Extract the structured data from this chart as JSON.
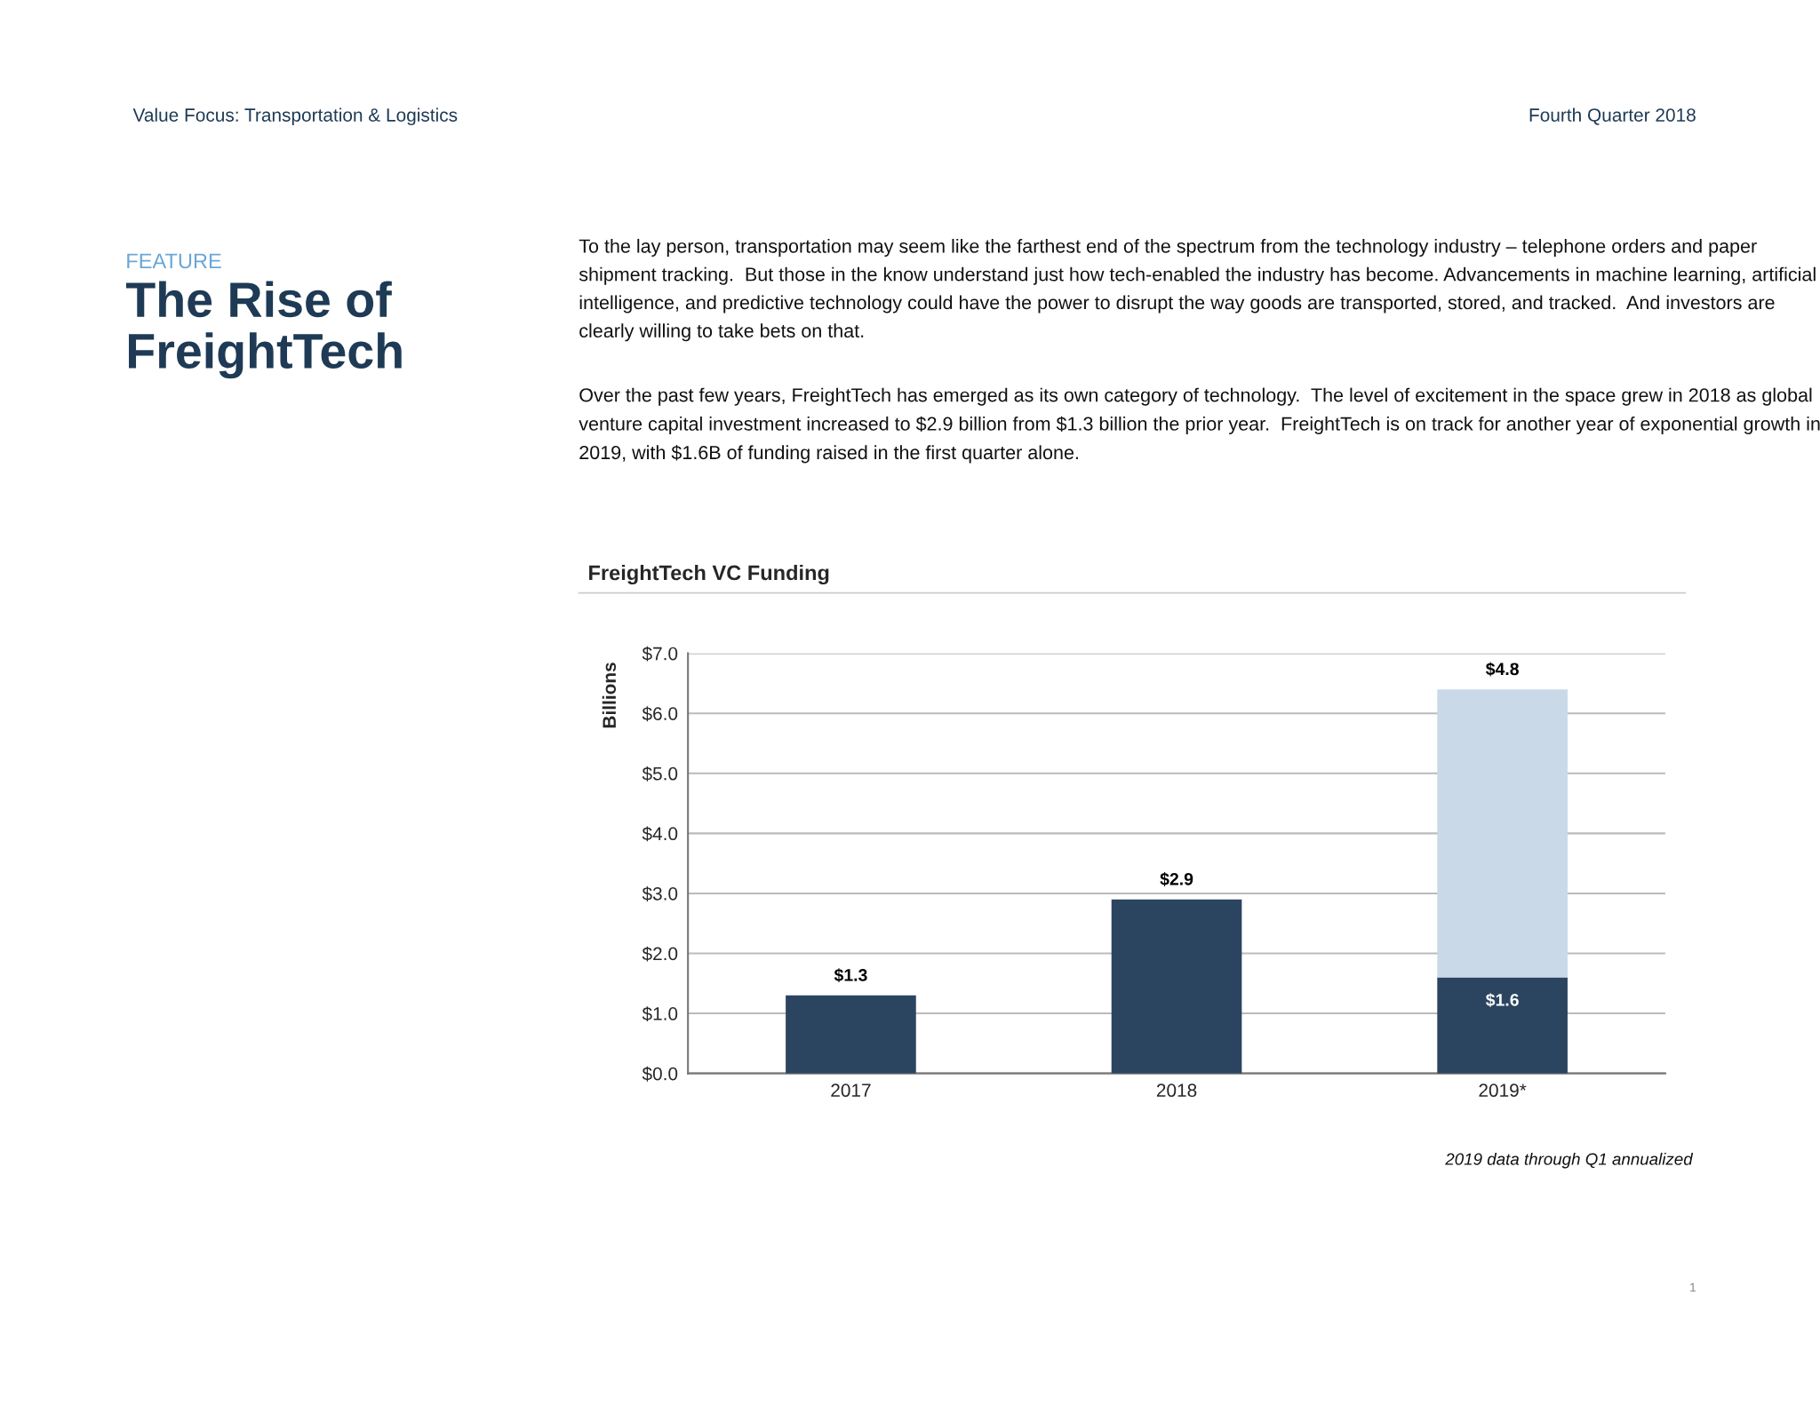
{
  "chart_data": {
    "type": "bar",
    "title": "FreightTech VC Funding",
    "ylabel": "Billions",
    "categories": [
      "2017",
      "2018",
      "2019*"
    ],
    "stacked": true,
    "series": [
      {
        "color": "#2b4560",
        "values": [
          1.3,
          2.9,
          1.6
        ],
        "value_labels": [
          "$1.3",
          "$2.9",
          "$1.6"
        ]
      },
      {
        "color": "#c9d9e8",
        "values": [
          null,
          null,
          4.8
        ],
        "value_labels": [
          null,
          null,
          "$4.8"
        ]
      }
    ],
    "ylim": [
      0,
      7
    ],
    "yticks": [
      {
        "value": 0,
        "label": "$0.0"
      },
      {
        "value": 1,
        "label": "$1.0"
      },
      {
        "value": 2,
        "label": "$2.0"
      },
      {
        "value": 3,
        "label": "$3.0"
      },
      {
        "value": 4,
        "label": "$4.0"
      },
      {
        "value": 5,
        "label": "$5.0"
      },
      {
        "value": 6,
        "label": "$6.0"
      },
      {
        "value": 7,
        "label": "$7.0"
      }
    ],
    "grid": "y",
    "legend": false,
    "annotations": [
      "Value Focus: Transportation & Logistics",
      "Fourth Quarter 2018",
      "FEATURE",
      "The Rise of\nFreightTech",
      "To the lay person, transportation may seem like the farthest end of the spectrum from the technology industry – telephone orders and paper shipment tracking.  But those in the know understand just how tech-enabled the industry has become. Advancements in machine learning, artificial intelligence, and predictive technology could have the power to disrupt the way goods are transported, stored, and tracked.  And investors are clearly willing to take bets on that.",
      "Over the past few years, FreightTech has emerged as its own category of technology.  The level of excitement in the space grew in 2018 as global venture capital investment increased to $2.9 billion from $1.3 billion the prior year.  FreightTech is on track for another year of exponential growth in 2019, with $1.6B of funding raised in the first quarter alone.",
      "2019 data through Q1 annualized",
      "1"
    ]
  }
}
